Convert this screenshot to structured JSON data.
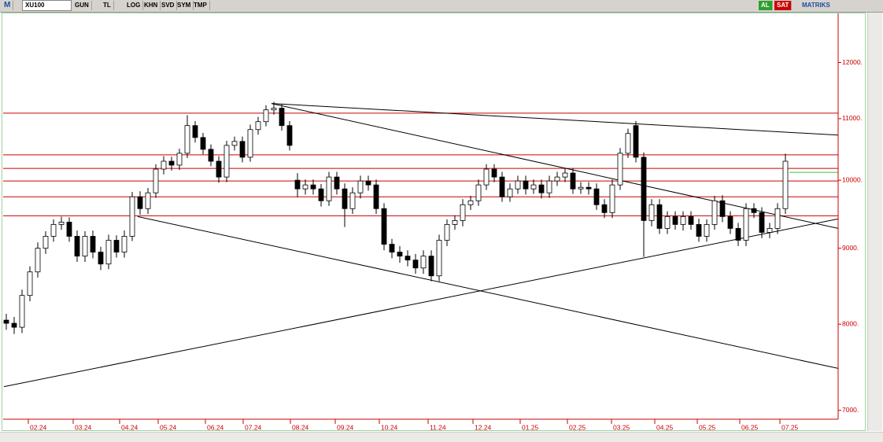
{
  "toolbar": {
    "logo": "M",
    "symbol": "XU100",
    "buttons": [
      "GUN",
      "TL",
      "LOG",
      "KHN",
      "SVD",
      "SYM",
      "TMP"
    ],
    "buy": "AL",
    "sell": "SAT",
    "brand": "MATRIKS"
  },
  "chart_data": {
    "type": "candlestick",
    "log_scale": true,
    "up_color": "#ffffff",
    "down_color": "#000000",
    "axis_color": "#cc0000",
    "open": [
      8050,
      8011,
      7962,
      8364,
      8675,
      8999,
      9167,
      9337,
      9370,
      9167,
      8890,
      9167,
      8945,
      8782,
      9111,
      8945,
      9167,
      9746,
      9569,
      9806,
      10173,
      10298,
      10236,
      10426,
      10883,
      10684,
      10490,
      10298,
      10049,
      10554,
      10619,
      10362,
      10816,
      10949,
      11152,
      11180,
      10883,
      10000,
      9866,
      9927,
      9866,
      9686,
      10049,
      9866,
      9569,
      9806,
      9988,
      9927,
      9569,
      9055,
      8945,
      8890,
      8836,
      8728,
      8890,
      8622,
      9111,
      9337,
      9394,
      9627,
      9686,
      9927,
      10173,
      10049,
      9746,
      9866,
      9988,
      9866,
      9927,
      9806,
      9988,
      10049,
      10111,
      9866,
      9890,
      9866,
      9627,
      9510,
      9927,
      10426,
      10883,
      10362,
      9394,
      9627,
      9280,
      9452,
      9337,
      9452,
      9337,
      9167,
      9337,
      9686,
      9452,
      9280,
      9111,
      9569,
      9510,
      9223,
      9280,
      9569
    ],
    "high": [
      8130,
      8090,
      8440,
      8750,
      9080,
      9240,
      9410,
      9450,
      9440,
      9250,
      9240,
      9250,
      9020,
      9190,
      9180,
      9250,
      9820,
      9830,
      9880,
      10250,
      10380,
      10370,
      10500,
      11060,
      10960,
      10760,
      10570,
      10380,
      10630,
      10700,
      10700,
      10900,
      11030,
      11230,
      11290,
      11250,
      10960,
      10110,
      10010,
      10010,
      9940,
      10130,
      10130,
      9950,
      9890,
      10070,
      10070,
      10010,
      9650,
      9130,
      9030,
      8970,
      8920,
      8970,
      8970,
      9190,
      9410,
      9470,
      9710,
      9760,
      10010,
      10250,
      10250,
      10130,
      9950,
      10070,
      10070,
      10010,
      10010,
      10070,
      10130,
      10190,
      10190,
      9970,
      9970,
      9950,
      9710,
      10010,
      10510,
      10830,
      10960,
      10440,
      9710,
      9710,
      9530,
      9530,
      9530,
      9530,
      9420,
      9410,
      9760,
      9770,
      9530,
      9360,
      9650,
      9650,
      9590,
      9360,
      9650,
      10420
    ],
    "low": [
      7930,
      7880,
      7890,
      8290,
      8600,
      8920,
      9090,
      9260,
      9090,
      8810,
      8810,
      8860,
      8700,
      8710,
      8870,
      8870,
      9100,
      9480,
      9490,
      9730,
      10090,
      10150,
      10160,
      10350,
      10600,
      10410,
      10220,
      9960,
      9970,
      10470,
      10280,
      10290,
      10730,
      10870,
      11070,
      10800,
      10470,
      9740,
      9780,
      9780,
      9600,
      9610,
      9780,
      9300,
      9490,
      9720,
      9840,
      9490,
      8970,
      8860,
      8800,
      8750,
      8650,
      8650,
      8550,
      8550,
      9030,
      9260,
      9310,
      9550,
      9610,
      9850,
      9970,
      9670,
      9670,
      9790,
      9780,
      9790,
      9720,
      9730,
      9910,
      9970,
      9790,
      9790,
      9780,
      9550,
      9430,
      9430,
      9850,
      10350,
      10280,
      8880,
      9310,
      9200,
      9200,
      9260,
      9250,
      9260,
      9090,
      9090,
      9260,
      9370,
      9200,
      9030,
      9030,
      9430,
      9140,
      9140,
      9200,
      9490
    ],
    "close": [
      8011,
      7962,
      8364,
      8675,
      8999,
      9167,
      9337,
      9370,
      9167,
      8890,
      9167,
      8945,
      8782,
      9111,
      8945,
      9167,
      9746,
      9569,
      9806,
      10173,
      10298,
      10236,
      10426,
      10883,
      10684,
      10490,
      10298,
      10049,
      10554,
      10619,
      10362,
      10816,
      10949,
      11152,
      11180,
      10883,
      10554,
      9866,
      9927,
      9866,
      9686,
      10049,
      9866,
      9569,
      9806,
      9988,
      9927,
      9569,
      9055,
      8945,
      8890,
      8836,
      8728,
      8890,
      8622,
      9111,
      9337,
      9394,
      9627,
      9686,
      9927,
      10173,
      10049,
      9746,
      9866,
      9988,
      9866,
      9927,
      9806,
      9988,
      10049,
      10111,
      9866,
      9890,
      9866,
      9627,
      9510,
      9927,
      10426,
      10750,
      10362,
      9394,
      9627,
      9280,
      9452,
      9337,
      9452,
      9337,
      9167,
      9337,
      9686,
      9452,
      9280,
      9111,
      9569,
      9510,
      9223,
      9280,
      9569,
      10298
    ],
    "xlim": [
      -0.3,
      105.7
    ],
    "xticks": [
      {
        "value": 2.8,
        "label": "02.24"
      },
      {
        "value": 8.5,
        "label": "03.24"
      },
      {
        "value": 14.4,
        "label": "04.24"
      },
      {
        "value": 19.3,
        "label": "05.24"
      },
      {
        "value": 25.3,
        "label": "06.24"
      },
      {
        "value": 30.1,
        "label": "07.24"
      },
      {
        "value": 36.1,
        "label": "08.24"
      },
      {
        "value": 41.8,
        "label": "09.24"
      },
      {
        "value": 47.4,
        "label": "10.24"
      },
      {
        "value": 53.6,
        "label": "11.24"
      },
      {
        "value": 59.3,
        "label": "12.24"
      },
      {
        "value": 65.3,
        "label": "01.25"
      },
      {
        "value": 71.3,
        "label": "02.25"
      },
      {
        "value": 76.9,
        "label": "03.25"
      },
      {
        "value": 82.4,
        "label": "04.25"
      },
      {
        "value": 87.8,
        "label": "05.25"
      },
      {
        "value": 93.2,
        "label": "06.25"
      },
      {
        "value": 98.3,
        "label": "07.25"
      }
    ],
    "ylim": [
      6930,
      12950
    ],
    "yticks": [
      {
        "value": 7000,
        "label": "7000."
      },
      {
        "value": 8000,
        "label": "8000."
      },
      {
        "value": 9000,
        "label": "9000."
      },
      {
        "value": 10000,
        "label": "10000."
      },
      {
        "value": 11000,
        "label": "11000."
      },
      {
        "value": 12000,
        "label": "12000."
      }
    ],
    "levels": {
      "color": "#cc0000",
      "values": [
        11095,
        10400,
        10185,
        9988,
        9746,
        9463
      ]
    },
    "trendlines": [
      {
        "color": "#000000",
        "x": [
          33.7,
          105.7
        ],
        "values": [
          11262,
          10724
        ]
      },
      {
        "color": "#000000",
        "x": [
          33.7,
          105.7
        ],
        "values": [
          11262,
          9280
        ]
      },
      {
        "color": "#000000",
        "x": [
          16.7,
          105.7
        ],
        "values": [
          9452,
          7470
        ]
      },
      {
        "color": "#000000",
        "x": [
          -0.3,
          105.7
        ],
        "values": [
          7262,
          9418
        ]
      },
      {
        "color": "#33cc33",
        "x": [
          99.5,
          105.7
        ],
        "values": [
          10123,
          10123
        ]
      }
    ]
  }
}
